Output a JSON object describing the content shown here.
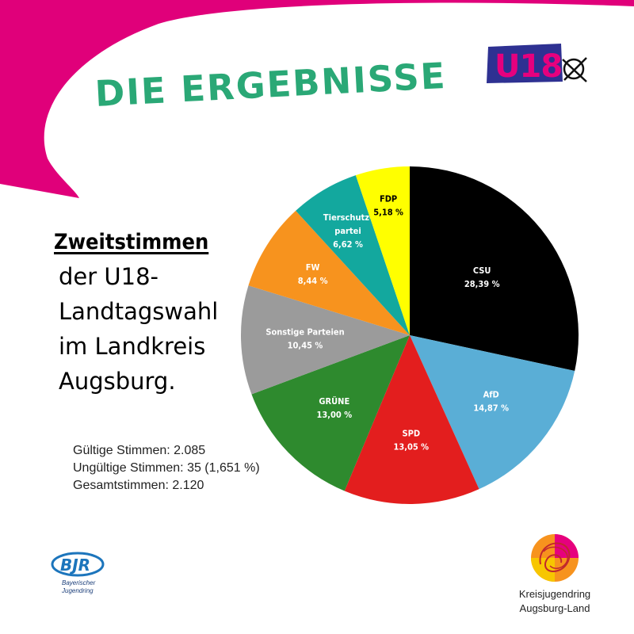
{
  "header": {
    "title": "DIE ERGEBNISSE",
    "logo_text": "U18"
  },
  "subtitle": {
    "bold": "Zweitstimmen",
    "lines": [
      "der U18-",
      "Landtagswahl",
      "im Landkreis",
      "Augsburg."
    ]
  },
  "stats": {
    "valid": "Gültige Stimmen: 2.085",
    "invalid": "Ungültige Stimmen: 35 (1,651 %)",
    "total": "Gesamtstimmen: 2.120"
  },
  "chart_data": {
    "type": "pie",
    "title": "",
    "slices": [
      {
        "label": "CSU",
        "value": 28.39,
        "display": "28,39 %",
        "color": "#000000",
        "text_color": "#ffffff"
      },
      {
        "label": "AfD",
        "value": 14.87,
        "display": "14,87 %",
        "color": "#5aaed6",
        "text_color": "#ffffff"
      },
      {
        "label": "SPD",
        "value": 13.05,
        "display": "13,05 %",
        "color": "#e31e1e",
        "text_color": "#ffffff"
      },
      {
        "label": "GRÜNE",
        "value": 13.0,
        "display": "13,00 %",
        "color": "#2e8a2e",
        "text_color": "#ffffff"
      },
      {
        "label": "Sonstige Parteien",
        "value": 10.45,
        "display": "10,45 %",
        "color": "#9b9b9b",
        "text_color": "#ffffff"
      },
      {
        "label": "FW",
        "value": 8.44,
        "display": "8,44 %",
        "color": "#f7931e",
        "text_color": "#ffffff"
      },
      {
        "label": "Tierschutz-\npartei",
        "value": 6.62,
        "display": "6,62 %",
        "color": "#13a89e",
        "text_color": "#ffffff"
      },
      {
        "label": "FDP",
        "value": 5.18,
        "display": "5,18 %",
        "color": "#ffff00",
        "text_color": "#000000"
      }
    ]
  },
  "footer": {
    "bjr_logo": "BJR",
    "bjr_line1": "Bayerischer",
    "bjr_line2": "Jugendring",
    "kjr_line1": "Kreisjugendring",
    "kjr_line2": "Augsburg-Land"
  },
  "colors": {
    "magenta": "#e0007a",
    "title_green": "#2aa876",
    "u18_blue": "#2e3192",
    "u18_pink": "#e6007e"
  }
}
